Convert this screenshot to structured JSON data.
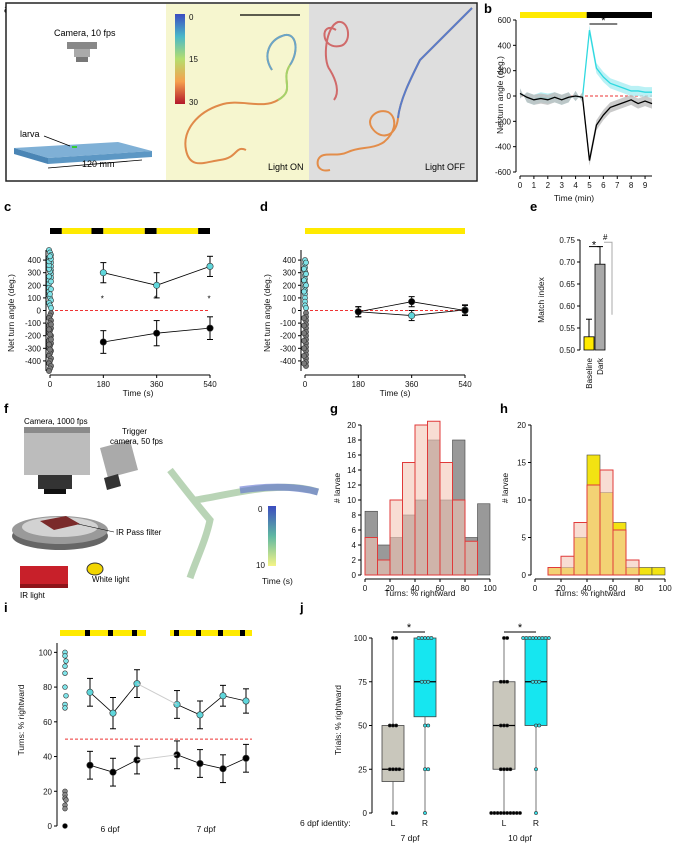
{
  "figure": {
    "panel_labels": [
      "a",
      "b",
      "c",
      "d",
      "e",
      "f",
      "g",
      "h",
      "i",
      "j"
    ],
    "a": {
      "camera_label": "Camera, 10 fps",
      "larva_label": "larva",
      "dimension_label": "120 mm",
      "colorbar_ticks": [
        "0",
        "15",
        "30"
      ],
      "light_on_label": "Light ON",
      "light_off_label": "Light OFF"
    },
    "b": {
      "ylabel": "Net turn angle (deg.)",
      "xlabel": "Time (min)",
      "star": "*",
      "colors": {
        "light": "#ffea00",
        "dark": "#000000",
        "cyan": "#2fd9e0"
      }
    },
    "c": {
      "ylabel": "Net turn angle (deg.)",
      "xlabel": "Time (s)",
      "star": "*"
    },
    "d": {
      "ylabel": "Net turn angle (deg.)",
      "xlabel": "Time (s)"
    },
    "e": {
      "ylabel": "Match index",
      "star": "*",
      "hash": "#"
    },
    "f": {
      "camera_label": "Camera, 1000 fps",
      "trigger_label_1": "Trigger",
      "trigger_label_2": "camera, 50 fps",
      "filter_label": "IR Pass filter",
      "ir_label": "IR light",
      "white_label": "White light",
      "colorbar_ticks": [
        "0",
        "10"
      ],
      "colorbar_title": "Time (s)"
    },
    "g": {
      "ylabel": "# larvae",
      "xlabel": "Turns: % rightward"
    },
    "h": {
      "ylabel": "# larvae",
      "xlabel": "Turns: % rightward"
    },
    "i": {
      "ylabel": "Turns: % rightward",
      "day_labels": [
        "6 dpf",
        "7 dpf"
      ]
    },
    "j": {
      "ylabel": "Trials: % rightward",
      "identity_label": "6 dpf identity:",
      "group_labels": [
        "L",
        "R",
        "L",
        "R"
      ],
      "day_labels": [
        "7 dpf",
        "10 dpf"
      ],
      "star": "*"
    }
  },
  "chart_data": [
    {
      "panel": "b",
      "type": "line",
      "x": [
        0,
        0.5,
        1,
        1.5,
        2,
        2.5,
        3,
        3.5,
        4,
        4.5,
        5,
        5.5,
        6,
        6.5,
        7,
        7.5,
        8,
        8.5,
        9,
        9.5
      ],
      "xticks": [
        0,
        1,
        2,
        3,
        4,
        5,
        6,
        7,
        8,
        9
      ],
      "yticks": [
        -600,
        -400,
        -200,
        0,
        200,
        400,
        600
      ],
      "ylim": [
        -600,
        600
      ],
      "xlim": [
        0,
        9.5
      ],
      "series": [
        {
          "color": "cyan",
          "values": [
            20,
            -10,
            -30,
            -10,
            -20,
            -10,
            -30,
            -10,
            0,
            -10,
            520,
            220,
            150,
            100,
            80,
            60,
            40,
            40,
            30,
            30
          ]
        },
        {
          "color": "black",
          "values": [
            20,
            -10,
            -30,
            -20,
            -30,
            -10,
            -30,
            -10,
            0,
            -10,
            -510,
            -230,
            -150,
            -90,
            -70,
            -50,
            -30,
            -60,
            -40,
            -60
          ]
        }
      ],
      "bars": [
        {
          "from": 0,
          "to": 4.8,
          "color": "light"
        },
        {
          "from": 4.8,
          "to": 9.5,
          "color": "dark"
        }
      ]
    },
    {
      "panel": "c",
      "type": "line",
      "x": [
        180,
        360,
        540
      ],
      "xticks": [
        0,
        180,
        360,
        540
      ],
      "yticks": [
        -400,
        -300,
        -200,
        -100,
        0,
        100,
        200,
        300,
        400
      ],
      "ylim": [
        -480,
        480
      ],
      "series": [
        {
          "color": "cyan",
          "values": [
            300,
            200,
            350
          ],
          "err": [
            80,
            100,
            80
          ]
        },
        {
          "color": "black",
          "values": [
            -250,
            -180,
            -140
          ],
          "err": [
            90,
            100,
            90
          ]
        }
      ],
      "scatter_at_zero": {
        "cyan": [
          480,
          460,
          440,
          420,
          400,
          380,
          350,
          320,
          290,
          260,
          240,
          210,
          180,
          150,
          120,
          100,
          80,
          60,
          40,
          20,
          130,
          170,
          230,
          270,
          310,
          330,
          360,
          390,
          410,
          430
        ],
        "black": [
          -20,
          -40,
          -60,
          -80,
          -100,
          -120,
          -140,
          -160,
          -180,
          -200,
          -220,
          -240,
          -260,
          -280,
          -300,
          -320,
          -340,
          -360,
          -380,
          -400,
          -420,
          -440,
          -460,
          -480,
          -110,
          -150,
          -190,
          -230,
          -270,
          -310
        ]
      }
    },
    {
      "panel": "d",
      "type": "line",
      "x": [
        180,
        360,
        540
      ],
      "xticks": [
        0,
        180,
        360,
        540
      ],
      "yticks": [
        -400,
        -300,
        -200,
        -100,
        0,
        100,
        200,
        300,
        400
      ],
      "ylim": [
        -480,
        480
      ],
      "series": [
        {
          "color": "cyan",
          "values": [
            -10,
            -40,
            5
          ],
          "err": [
            40,
            40,
            40
          ]
        },
        {
          "color": "black",
          "values": [
            -10,
            70,
            0
          ],
          "err": [
            40,
            40,
            40
          ]
        }
      ],
      "scatter_at_zero": {
        "cyan": [
          400,
          370,
          340,
          310,
          280,
          250,
          220,
          190,
          160,
          130,
          100,
          70,
          40,
          20,
          380,
          330,
          290,
          240,
          200,
          150
        ],
        "black": [
          -20,
          -50,
          -80,
          -110,
          -140,
          -170,
          -200,
          -230,
          -260,
          -290,
          -320,
          -350,
          -380,
          -410,
          -440,
          -60,
          -120,
          -180,
          -240,
          -300,
          -360,
          -420
        ]
      }
    },
    {
      "panel": "e",
      "type": "bar",
      "categories": [
        "Baseline",
        "Dark"
      ],
      "values": [
        0.53,
        0.695
      ],
      "err": [
        0.04,
        0.04
      ],
      "colors": [
        "#ffea00",
        "#a9a9a9"
      ],
      "yticks": [
        0.5,
        0.55,
        0.6,
        0.65,
        0.7,
        0.75
      ],
      "ylim": [
        0.5,
        0.75
      ]
    },
    {
      "panel": "g",
      "type": "bar",
      "bin_edges": [
        0,
        10,
        20,
        30,
        40,
        50,
        60,
        70,
        80,
        90,
        100
      ],
      "xticks": [
        0,
        20,
        40,
        60,
        80,
        100
      ],
      "yticks": [
        0,
        2,
        4,
        6,
        8,
        10,
        12,
        14,
        16,
        18,
        20
      ],
      "ylim": [
        0,
        20
      ],
      "series": [
        {
          "name": "gray",
          "values": [
            8.5,
            4,
            5,
            8,
            10,
            18,
            10,
            18,
            5,
            9.5
          ],
          "color": "#999999"
        },
        {
          "name": "red",
          "values": [
            5,
            2,
            10,
            15,
            20,
            20.5,
            15,
            10,
            4.5,
            0
          ],
          "color": "#f4c7b6"
        }
      ]
    },
    {
      "panel": "h",
      "type": "bar",
      "bin_edges": [
        0,
        10,
        20,
        30,
        40,
        50,
        60,
        70,
        80,
        90,
        100
      ],
      "xticks": [
        0,
        20,
        40,
        60,
        80,
        100
      ],
      "yticks": [
        0,
        5,
        10,
        15,
        20
      ],
      "ylim": [
        0,
        20
      ],
      "series": [
        {
          "name": "yellow",
          "values": [
            0,
            1,
            1,
            5,
            16,
            11,
            7,
            1,
            1,
            1
          ],
          "color": "#f2e312"
        },
        {
          "name": "red",
          "values": [
            0,
            1,
            2.5,
            7,
            12,
            14,
            6,
            2,
            0,
            0
          ],
          "color": "#f4c7b6"
        }
      ]
    },
    {
      "panel": "i",
      "type": "line",
      "yticks": [
        0,
        20,
        40,
        60,
        80,
        100
      ],
      "ylim": [
        0,
        110
      ],
      "groups": [
        {
          "cyan": [
            77,
            65,
            82
          ],
          "black": [
            35,
            31,
            38
          ],
          "cyan_err": [
            8,
            9,
            8
          ],
          "black_err": [
            8,
            8,
            8
          ]
        },
        {
          "cyan": [
            70,
            64,
            75,
            72
          ],
          "black": [
            41,
            36,
            33,
            39
          ],
          "cyan_err": [
            8,
            8,
            6,
            7
          ],
          "black_err": [
            8,
            8,
            8,
            8
          ]
        }
      ],
      "scatter_at_zero": {
        "cyan": [
          100,
          98,
          95,
          92,
          88,
          80,
          75,
          70,
          68
        ],
        "black": [
          20,
          18,
          16,
          15,
          12,
          10,
          0
        ]
      }
    },
    {
      "panel": "j",
      "type": "box",
      "yticks": [
        0,
        25,
        50,
        75,
        100
      ],
      "ylim": [
        0,
        100
      ],
      "boxes": [
        {
          "q1": 18,
          "median": 25,
          "q3": 50,
          "min": 0,
          "max": 100,
          "color": "#c9c7bc",
          "points": [
            100,
            100,
            50,
            50,
            50,
            25,
            25,
            25,
            25,
            0,
            0
          ]
        },
        {
          "q1": 55,
          "median": 75,
          "q3": 100,
          "min": 0,
          "max": 100,
          "color": "#16e6f0",
          "points": [
            100,
            100,
            100,
            100,
            100,
            75,
            75,
            75,
            50,
            50,
            25,
            25,
            0
          ]
        },
        {
          "q1": 25,
          "median": 50,
          "q3": 75,
          "min": 0,
          "max": 100,
          "color": "#c9c7bc",
          "points": [
            100,
            100,
            75,
            75,
            75,
            50,
            50,
            50,
            25,
            25,
            25,
            25,
            0,
            0,
            0,
            0,
            0,
            0,
            0,
            0,
            0,
            0
          ]
        },
        {
          "q1": 50,
          "median": 75,
          "q3": 100,
          "min": 0,
          "max": 100,
          "color": "#16e6f0",
          "points": [
            100,
            100,
            100,
            100,
            100,
            100,
            100,
            100,
            100,
            75,
            75,
            75,
            50,
            50,
            25,
            0
          ]
        }
      ]
    }
  ]
}
